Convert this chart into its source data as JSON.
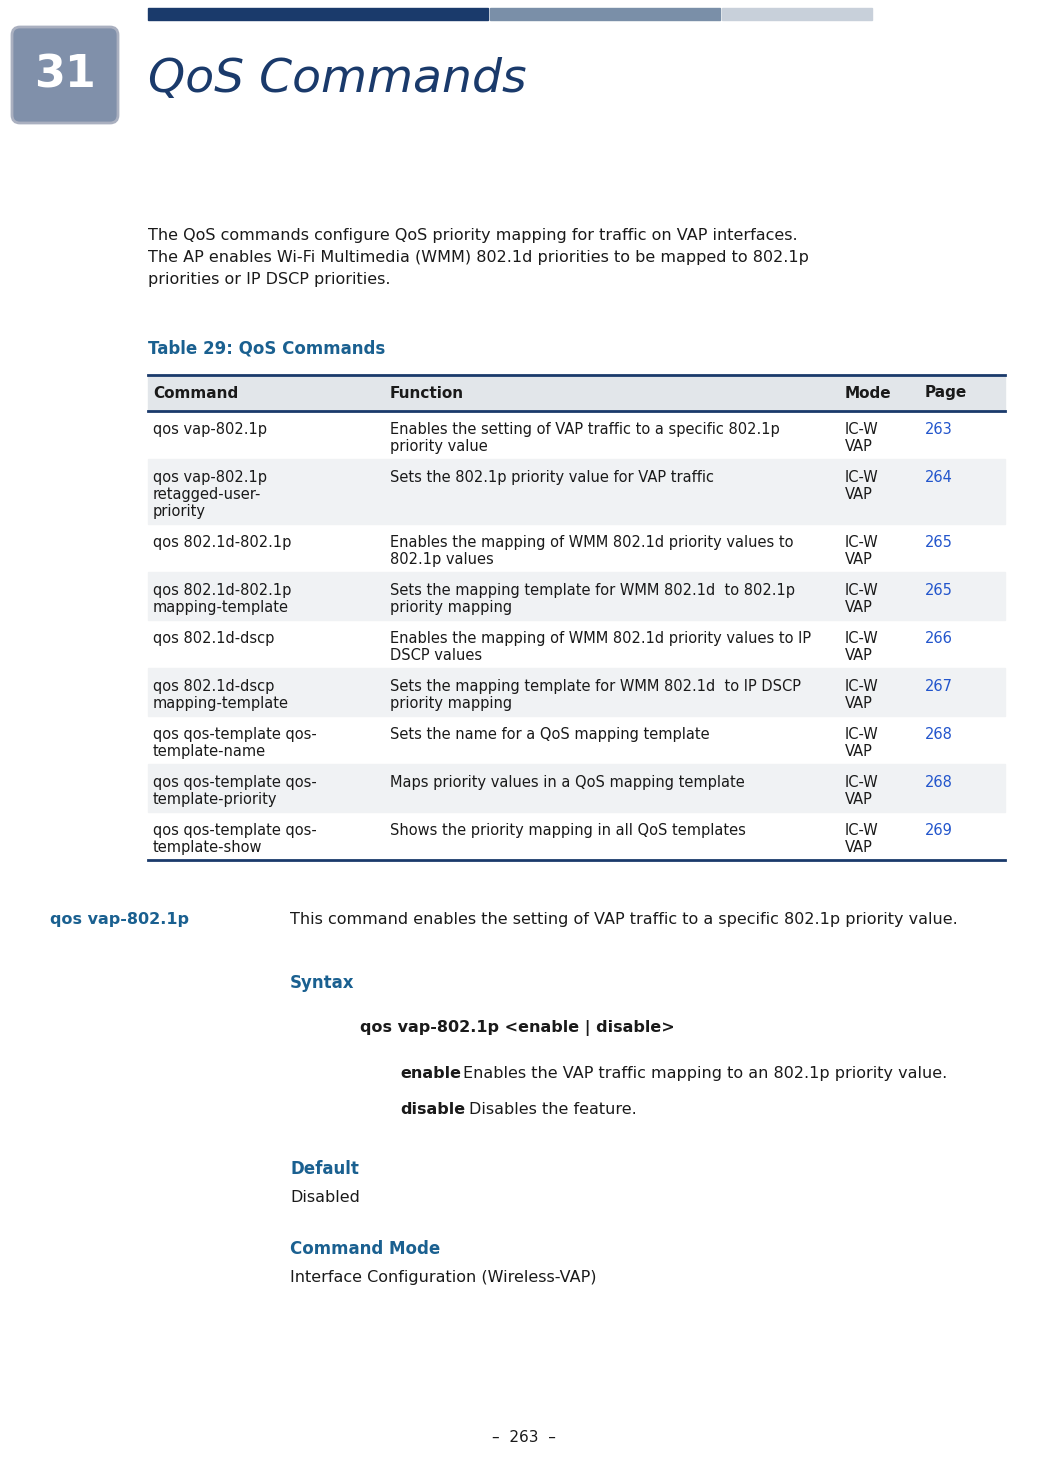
{
  "page_number": "263",
  "chapter_number": "31",
  "chapter_title": "QoS Commands",
  "header_bar_colors": [
    "#1a3a6b",
    "#7a8fa8",
    "#c8d0da"
  ],
  "chapter_badge_color": "#8090aa",
  "chapter_title_color": "#1a3a6b",
  "intro_lines": [
    "The QoS commands configure QoS priority mapping for traffic on VAP interfaces.",
    "The AP enables Wi-Fi Multimedia (WMM) 802.1d priorities to be mapped to 802.1p",
    "priorities or IP DSCP priorities."
  ],
  "table_title": "Table 29: QoS Commands",
  "table_title_color": "#1a6090",
  "table_header_bg": "#e2e6ea",
  "table_border_color": "#1a3a6b",
  "table_rows": [
    {
      "command": [
        "qos vap-802.1p"
      ],
      "function": [
        "Enables the setting of VAP traffic to a specific 802.1p",
        "priority value"
      ],
      "mode": [
        "IC-W",
        "VAP"
      ],
      "page": "263"
    },
    {
      "command": [
        "qos vap-802.1p",
        "retagged-user-",
        "priority"
      ],
      "function": [
        "Sets the 802.1p priority value for VAP traffic"
      ],
      "mode": [
        "IC-W",
        "VAP"
      ],
      "page": "264"
    },
    {
      "command": [
        "qos 802.1d-802.1p"
      ],
      "function": [
        "Enables the mapping of WMM 802.1d priority values to",
        "802.1p values"
      ],
      "mode": [
        "IC-W",
        "VAP"
      ],
      "page": "265"
    },
    {
      "command": [
        "qos 802.1d-802.1p",
        "mapping-template"
      ],
      "function": [
        "Sets the mapping template for WMM 802.1d  to 802.1p",
        "priority mapping"
      ],
      "mode": [
        "IC-W",
        "VAP"
      ],
      "page": "265"
    },
    {
      "command": [
        "qos 802.1d-dscp"
      ],
      "function": [
        "Enables the mapping of WMM 802.1d priority values to IP",
        "DSCP values"
      ],
      "mode": [
        "IC-W",
        "VAP"
      ],
      "page": "266"
    },
    {
      "command": [
        "qos 802.1d-dscp",
        "mapping-template"
      ],
      "function": [
        "Sets the mapping template for WMM 802.1d  to IP DSCP",
        "priority mapping"
      ],
      "mode": [
        "IC-W",
        "VAP"
      ],
      "page": "267"
    },
    {
      "command": [
        "qos qos-template qos-",
        "template-name"
      ],
      "function": [
        "Sets the name for a QoS mapping template"
      ],
      "mode": [
        "IC-W",
        "VAP"
      ],
      "page": "268"
    },
    {
      "command": [
        "qos qos-template qos-",
        "template-priority"
      ],
      "function": [
        "Maps priority values in a QoS mapping template"
      ],
      "mode": [
        "IC-W",
        "VAP"
      ],
      "page": "268"
    },
    {
      "command": [
        "qos qos-template qos-",
        "template-show"
      ],
      "function": [
        "Shows the priority mapping in all QoS templates"
      ],
      "mode": [
        "IC-W",
        "VAP"
      ],
      "page": "269"
    }
  ],
  "cmd_section_label": "qos vap-802.1p",
  "cmd_section_label_color": "#1a6090",
  "cmd_section_desc": "This command enables the setting of VAP traffic to a specific 802.1p priority value.",
  "syntax_label": "Syntax",
  "syntax_label_color": "#1a6090",
  "syntax_command": "qos vap-802.1p <enable | disable>",
  "enable_bold": "enable",
  "enable_rest": " - Enables the VAP traffic mapping to an 802.1p priority value.",
  "disable_bold": "disable",
  "disable_rest": " - Disables the feature.",
  "default_label": "Default",
  "default_label_color": "#1a6090",
  "default_value": "Disabled",
  "mode_label": "Command Mode",
  "mode_label_color": "#1a6090",
  "mode_value": "Interface Configuration (Wireless-VAP)",
  "footer_text": "–  263  –",
  "bg_color": "#ffffff",
  "text_color": "#1a1a1a",
  "page_link_color": "#2255cc"
}
